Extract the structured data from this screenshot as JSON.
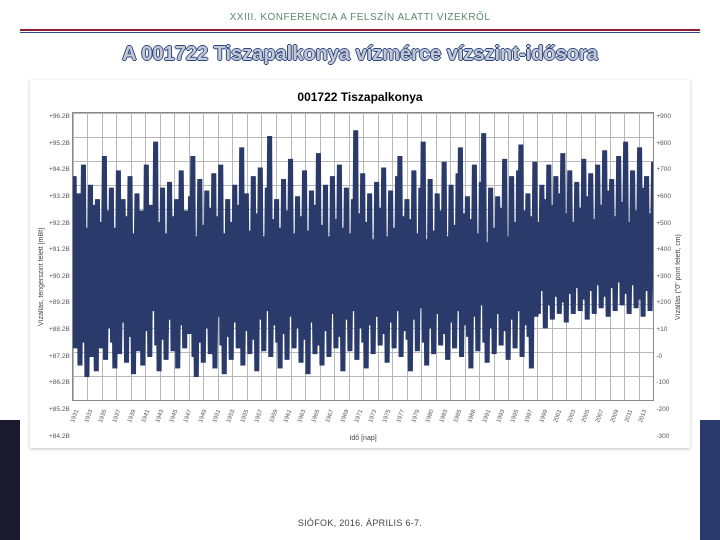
{
  "header": {
    "conference_line": "XXIII. KONFERENCIA A FELSZÍN ALATTI VIZEKRŐL",
    "rule_red": "#8b2030",
    "rule_blue": "#2b4a8a"
  },
  "slide_title": "A 001722 Tiszapalkonya vízmérce vízszint-idősora",
  "footer": "SIÓFOK, 2016. ÁPRILIS 6-7.",
  "chart": {
    "type": "line",
    "title": "001722 Tiszapalkonya",
    "title_fontsize": 12,
    "series_color": "#2a3a6a",
    "series_width": 0.7,
    "grid_color": "#b8b8b8",
    "axis_color": "#888888",
    "background_color": "#ffffff",
    "y_left": {
      "label": "Vízállás, tengerszint felett [mBf]",
      "ticks": [
        "+96.2B",
        "+95.2B",
        "+94.2B",
        "+93.2B",
        "+92.2B",
        "+91.2B",
        "+90.2B",
        "+89.2B",
        "+88.2B",
        "+87.2B",
        "+86.2B",
        "+85.2B",
        "+84.2B"
      ],
      "min": 84.2,
      "max": 96.2
    },
    "y_right": {
      "label": "Vízállás (\"0\" pont felett, cm)",
      "ticks": [
        "+900",
        "+800",
        "+700",
        "+600",
        "+500",
        "+400",
        "+300",
        "+200",
        "+10",
        "-0",
        "-100",
        "-200",
        "-300"
      ],
      "min": -300,
      "max": 900
    },
    "x": {
      "label": "Idő [nap]",
      "ticks": [
        "1931",
        "1933",
        "1935",
        "1937",
        "1939",
        "1941",
        "1943",
        "1945",
        "1947",
        "1949",
        "1951",
        "1953",
        "1955",
        "1957",
        "1959",
        "1961",
        "1963",
        "1965",
        "1967",
        "1969",
        "1971",
        "1973",
        "1975",
        "1977",
        "1979",
        "1980",
        "1983",
        "1985",
        "1988",
        "1991",
        "1993",
        "1995",
        "1997",
        "1999",
        "2001",
        "2003",
        "2005",
        "2007",
        "2009",
        "2011",
        "2013"
      ]
    },
    "values_norm": [
      0.22,
      0.78,
      0.18,
      0.65,
      0.3,
      0.72,
      0.12,
      0.55,
      0.4,
      0.82,
      0.2,
      0.6,
      0.08,
      0.5,
      0.35,
      0.75,
      0.15,
      0.68,
      0.28,
      0.58,
      0.1,
      0.7,
      0.32,
      0.62,
      0.18,
      0.55,
      0.42,
      0.85,
      0.14,
      0.48,
      0.25,
      0.66,
      0.36,
      0.74,
      0.2,
      0.52,
      0.11,
      0.6,
      0.3,
      0.8,
      0.16,
      0.45,
      0.27,
      0.7,
      0.38,
      0.56,
      0.13,
      0.64,
      0.34,
      0.78,
      0.22,
      0.5,
      0.09,
      0.58,
      0.4,
      0.72,
      0.17,
      0.54,
      0.29,
      0.66,
      0.12,
      0.48,
      0.35,
      0.82,
      0.24,
      0.6,
      0.15,
      0.68,
      0.31,
      0.56,
      0.43,
      0.9,
      0.19,
      0.52,
      0.1,
      0.62,
      0.37,
      0.74,
      0.21,
      0.58,
      0.14,
      0.49,
      0.28,
      0.76,
      0.39,
      0.64,
      0.17,
      0.55,
      0.33,
      0.7,
      0.11,
      0.47,
      0.26,
      0.8,
      0.41,
      0.59,
      0.18,
      0.66,
      0.3,
      0.53,
      0.23,
      0.71,
      0.36,
      0.85,
      0.15,
      0.5,
      0.08,
      0.57,
      0.42,
      0.77,
      0.2,
      0.61,
      0.13,
      0.48,
      0.34,
      0.73,
      0.25,
      0.55,
      0.16,
      0.67,
      0.38,
      0.79,
      0.11,
      0.46,
      0.29,
      0.64,
      0.4,
      0.82,
      0.19,
      0.53,
      0.09,
      0.58,
      0.32,
      0.7,
      0.22,
      0.49,
      0.14,
      0.62,
      0.37,
      0.75,
      0.27,
      0.56,
      0.18,
      0.68,
      0.41,
      0.88,
      0.12,
      0.51,
      0.33,
      0.72,
      0.24,
      0.59,
      0.16,
      0.47,
      0.35,
      0.78,
      0.21,
      0.54,
      0.1,
      0.65,
      0.39,
      0.81,
      0.28,
      0.57,
      0.17,
      0.5,
      0.31,
      0.74,
      0.43,
      0.92,
      0.15,
      0.48,
      0.26,
      0.63,
      0.36,
      0.7,
      0.2,
      0.55,
      0.11,
      0.6,
      0.34,
      0.77,
      0.23,
      0.52,
      0.14,
      0.66,
      0.38,
      0.84,
      0.29,
      0.58,
      0.18,
      0.49,
      0.32,
      0.71,
      0.25,
      0.56,
      0.13,
      0.64,
      0.4,
      0.8,
      0.21,
      0.53,
      0.09,
      0.59,
      0.35,
      0.73,
      0.27,
      0.5,
      0.16,
      0.68,
      0.42,
      0.86,
      0.19,
      0.54,
      0.12,
      0.61,
      0.33,
      0.75,
      0.24,
      0.57,
      0.15,
      0.47,
      0.3,
      0.78,
      0.41,
      0.63,
      0.18,
      0.52,
      0.36,
      0.82,
      0.22,
      0.55,
      0.1,
      0.6,
      0.38,
      0.74,
      0.28,
      0.58,
      0.17,
      0.49,
      0.31,
      0.7,
      0.43,
      0.94,
      0.14,
      0.51,
      0.25,
      0.65,
      0.37,
      0.79,
      0.2,
      0.53,
      0.11,
      0.62,
      0.34,
      0.72,
      0.26,
      0.56,
      0.16,
      0.48,
      0.29,
      0.76,
      0.4,
      0.67,
      0.19,
      0.54,
      0.33,
      0.81,
      0.23,
      0.57,
      0.13,
      0.5,
      0.35,
      0.73,
      0.27,
      0.6,
      0.18,
      0.47,
      0.31,
      0.78,
      0.42,
      0.85,
      0.15,
      0.52,
      0.24,
      0.64,
      0.36,
      0.7,
      0.21,
      0.55,
      0.1,
      0.63,
      0.39,
      0.8,
      0.28,
      0.58,
      0.17,
      0.49,
      0.32,
      0.74,
      0.44,
      0.9,
      0.2,
      0.56,
      0.12,
      0.51,
      0.34,
      0.77,
      0.25,
      0.59,
      0.16,
      0.48,
      0.3,
      0.72,
      0.41,
      0.66,
      0.19,
      0.53,
      0.37,
      0.83,
      0.23,
      0.57,
      0.14,
      0.5,
      0.35,
      0.75,
      0.27,
      0.61,
      0.18,
      0.47,
      0.31,
      0.79,
      0.43,
      0.88,
      0.15,
      0.54,
      0.26,
      0.65,
      0.38,
      0.71,
      0.22,
      0.56,
      0.11,
      0.63,
      0.4,
      0.82,
      0.29,
      0.58,
      0.17,
      0.5,
      0.33,
      0.76,
      0.45,
      0.93,
      0.2,
      0.55,
      0.13,
      0.52,
      0.34,
      0.74,
      0.25,
      0.6,
      0.16,
      0.48,
      0.3,
      0.71,
      0.42,
      0.67,
      0.19,
      0.53,
      0.37,
      0.84,
      0.24,
      0.57,
      0.14,
      0.51,
      0.36,
      0.78,
      0.28,
      0.62,
      0.18,
      0.47,
      0.31,
      0.8,
      0.44,
      0.89,
      0.15,
      0.54,
      0.26,
      0.66,
      0.39,
      0.72,
      0.22,
      0.56,
      0.11,
      0.64,
      0.4,
      0.83,
      0.29,
      0.59,
      0.3,
      0.62,
      0.45,
      0.75,
      0.38,
      0.58,
      0.25,
      0.7,
      0.42,
      0.82,
      0.33,
      0.55,
      0.28,
      0.68,
      0.46,
      0.78,
      0.36,
      0.6,
      0.3,
      0.72,
      0.48,
      0.86,
      0.34,
      0.57,
      0.27,
      0.65,
      0.43,
      0.8,
      0.37,
      0.62,
      0.3,
      0.54,
      0.45,
      0.76,
      0.39,
      0.67,
      0.31,
      0.58,
      0.47,
      0.84,
      0.35,
      0.6,
      0.28,
      0.71,
      0.44,
      0.79,
      0.38,
      0.63,
      0.3,
      0.56,
      0.46,
      0.82,
      0.4,
      0.68,
      0.32,
      0.59,
      0.48,
      0.87,
      0.36,
      0.61,
      0.29,
      0.73,
      0.45,
      0.77,
      0.39,
      0.64,
      0.31,
      0.57,
      0.47,
      0.85,
      0.41,
      0.69,
      0.33,
      0.6,
      0.49,
      0.9,
      0.37,
      0.62,
      0.3,
      0.55,
      0.46,
      0.8,
      0.4,
      0.66,
      0.32,
      0.58,
      0.48,
      0.88,
      0.35,
      0.63,
      0.29,
      0.74,
      0.44,
      0.78,
      0.38,
      0.65,
      0.31,
      0.56,
      0.47,
      0.83
    ]
  },
  "decor": {
    "band_left_color": "#1a1a2e",
    "band_right_color": "#2a3a6a"
  }
}
